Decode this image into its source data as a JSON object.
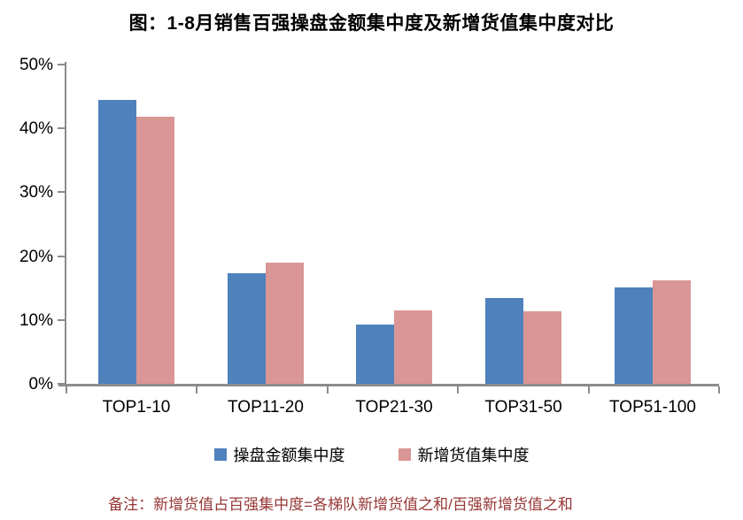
{
  "chart_data": {
    "type": "bar",
    "title": "图：1-8月销售百强操盘金额集中度及新增货值集中度对比",
    "categories": [
      "TOP1-10",
      "TOP11-20",
      "TOP21-30",
      "TOP31-50",
      "TOP51-100"
    ],
    "series": [
      {
        "name": "操盘金额集中度",
        "color": "#4F81BD",
        "values": [
          44.4,
          17.3,
          9.3,
          13.5,
          15.1
        ]
      },
      {
        "name": "新增货值集中度",
        "color": "#D99694",
        "values": [
          41.8,
          19.0,
          11.5,
          11.3,
          16.2
        ]
      }
    ],
    "xlabel": "",
    "ylabel": "",
    "ylim": [
      0,
      50
    ],
    "yticks": [
      "0%",
      "10%",
      "20%",
      "30%",
      "40%",
      "50%"
    ],
    "grid": false,
    "legend_position": "bottom",
    "footnote": "备注：新增货值占百强集中度=各梯队新增货值之和/百强新增货值之和"
  },
  "colors": {
    "axis": "#8c8c8c",
    "footnote": "#953735",
    "text": "#000000"
  }
}
